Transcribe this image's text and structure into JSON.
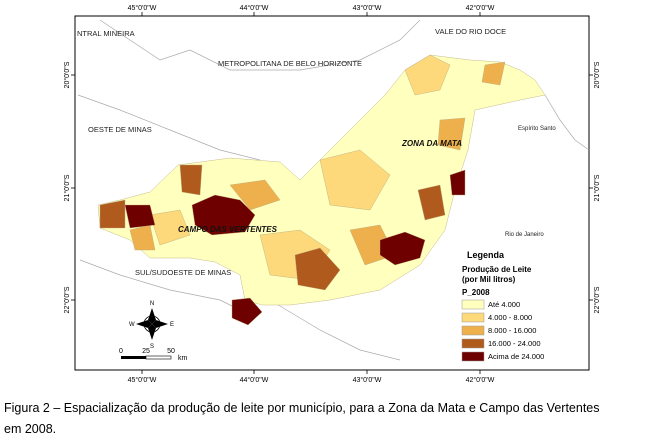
{
  "map": {
    "top_labels": [
      "45°0'0\"W",
      "44°0'0\"W",
      "43°0'0\"W",
      "42°0'0\"W"
    ],
    "bottom_labels": [
      "45°0'0\"W",
      "44°0'0\"W",
      "43°0'0\"W",
      "42°0'0\"W"
    ],
    "left_labels": [
      "20°0'0\"S",
      "21°0'0\"S",
      "22°0'0\"S"
    ],
    "right_labels": [
      "20°0'0\"S",
      "21°0'0\"S",
      "22°0'0\"S"
    ],
    "regions": [
      "NTRAL MINEIRA",
      "VALE DO RIO DOCE",
      "METROPOLITANA DE BELO HORIZONTE",
      "OESTE DE MINAS",
      "ZONA DA MATA",
      "Espírito Santo",
      "CAMPO DAS VERTENTES",
      "SUL/SUDOESTE DE MINAS",
      "Rio de Janeiro"
    ],
    "compass": {
      "n": "N",
      "s": "S",
      "e": "E",
      "w": "W"
    },
    "scale": {
      "ticks": [
        0,
        25,
        50
      ],
      "unit": "km"
    },
    "legend": {
      "title": "Legenda",
      "subtitle1": "Produção de Leite",
      "subtitle2": "(por Mil litros)",
      "field": "P_2008",
      "items": [
        {
          "label": "Até 4.000",
          "color": "#ffffbe"
        },
        {
          "label": "4.000 - 8.000",
          "color": "#fdd97c"
        },
        {
          "label": "8.000 - 16.000",
          "color": "#eeb04c"
        },
        {
          "label": "16.000 - 24.000",
          "color": "#b05a1e"
        },
        {
          "label": "Acima de 24.000",
          "color": "#6e0000"
        }
      ]
    }
  },
  "caption": {
    "line1": "Figura 2 – Espacialização da produção de leite por município, para a Zona da Mata e Campo das Vertentes",
    "line2": "em 2008."
  }
}
